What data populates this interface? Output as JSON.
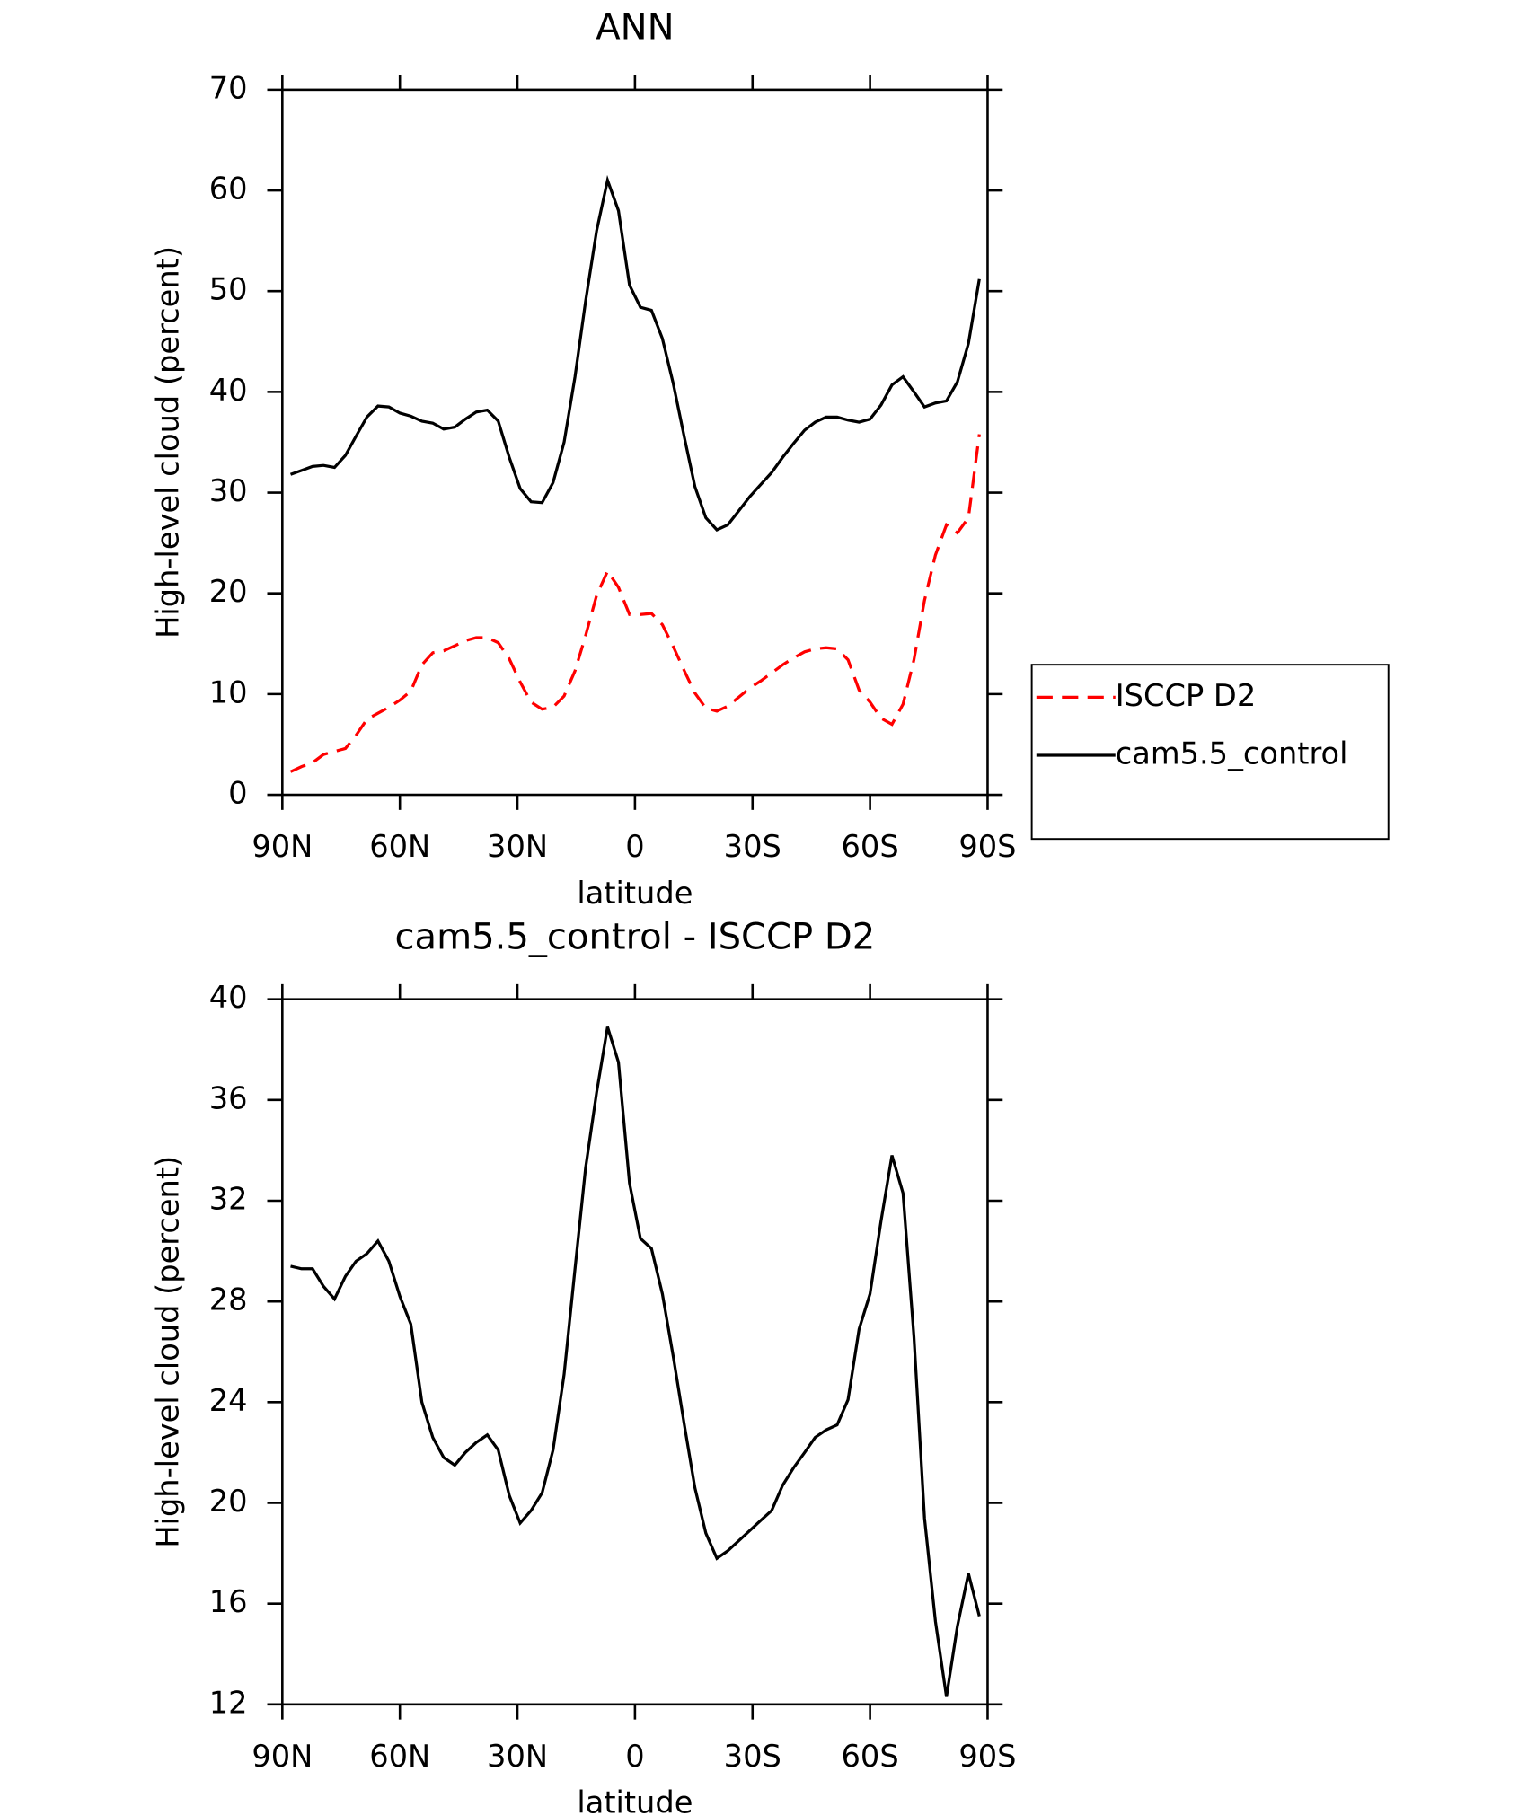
{
  "chart_data": [
    {
      "type": "line",
      "title": "ANN",
      "xlabel": "latitude",
      "ylabel": "High-level cloud (percent)",
      "x": [
        87.9,
        85.1,
        82.3,
        79.5,
        76.7,
        73.9,
        71.2,
        68.4,
        65.6,
        62.8,
        60.0,
        57.2,
        54.4,
        51.6,
        48.8,
        46.0,
        43.3,
        40.5,
        37.7,
        34.9,
        32.1,
        29.3,
        26.5,
        23.7,
        20.9,
        18.1,
        15.3,
        12.6,
        9.8,
        7.0,
        4.2,
        1.4,
        -1.4,
        -4.2,
        -7.0,
        -9.8,
        -12.6,
        -15.3,
        -18.1,
        -20.9,
        -23.7,
        -26.5,
        -29.3,
        -32.1,
        -34.9,
        -37.7,
        -40.5,
        -43.3,
        -46.0,
        -48.8,
        -51.6,
        -54.4,
        -57.2,
        -60.0,
        -62.8,
        -65.6,
        -68.4,
        -71.2,
        -73.9,
        -76.7,
        -79.5,
        -82.3,
        -85.1,
        -87.9
      ],
      "series": [
        {
          "name": "ISCCP D2",
          "color": "#ff0000",
          "line_style": "dashed",
          "values": [
            2.3,
            2.8,
            3.2,
            4.0,
            4.3,
            4.6,
            5.9,
            7.5,
            8.1,
            8.7,
            9.4,
            10.3,
            12.9,
            14.1,
            14.3,
            14.8,
            15.3,
            15.6,
            15.6,
            15.1,
            13.5,
            11.2,
            9.2,
            8.5,
            8.7,
            9.8,
            12.3,
            15.8,
            19.8,
            22.2,
            20.6,
            17.9,
            17.9,
            18.0,
            16.9,
            14.7,
            12.3,
            10.1,
            8.6,
            8.3,
            8.8,
            9.7,
            10.6,
            11.3,
            12.1,
            12.9,
            13.6,
            14.2,
            14.5,
            14.6,
            14.5,
            13.4,
            10.4,
            9.2,
            7.6,
            7.0,
            9.0,
            13.4,
            19.3,
            23.8,
            26.8,
            26.0,
            27.5,
            35.8
          ]
        },
        {
          "name": "cam5.5_control",
          "color": "#000000",
          "line_style": "solid",
          "values": [
            31.8,
            32.2,
            32.6,
            32.7,
            32.5,
            33.7,
            35.6,
            37.5,
            38.6,
            38.5,
            37.9,
            37.6,
            37.1,
            36.9,
            36.3,
            36.5,
            37.3,
            38.0,
            38.2,
            37.1,
            33.5,
            30.4,
            29.1,
            29.0,
            31.0,
            35.0,
            41.5,
            49.0,
            56.0,
            61.0,
            58.0,
            50.6,
            48.4,
            48.1,
            45.3,
            40.8,
            35.5,
            30.6,
            27.5,
            26.3,
            26.8,
            28.2,
            29.6,
            30.8,
            32.0,
            33.5,
            34.9,
            36.2,
            37.0,
            37.5,
            37.5,
            37.2,
            37.0,
            37.3,
            38.7,
            40.7,
            41.5,
            40.0,
            38.5,
            38.9,
            39.1,
            41.0,
            44.8,
            51.2
          ]
        }
      ],
      "xlim": [
        90,
        -90
      ],
      "xticks": [
        {
          "value": 90,
          "label": "90N"
        },
        {
          "value": 60,
          "label": "60N"
        },
        {
          "value": 30,
          "label": "30N"
        },
        0,
        {
          "value": -30,
          "label": "30S"
        },
        {
          "value": -60,
          "label": "60S"
        },
        {
          "value": -90,
          "label": "90S"
        }
      ],
      "ylim": [
        0,
        70
      ],
      "yticks": [
        0,
        10,
        20,
        30,
        40,
        50,
        60,
        70
      ],
      "legend": "right"
    },
    {
      "type": "line",
      "title": "cam5.5_control - ISCCP D2",
      "xlabel": "latitude",
      "ylabel": "High-level cloud (percent)",
      "x": [
        87.9,
        85.1,
        82.3,
        79.5,
        76.7,
        73.9,
        71.2,
        68.4,
        65.6,
        62.8,
        60.0,
        57.2,
        54.4,
        51.6,
        48.8,
        46.0,
        43.3,
        40.5,
        37.7,
        34.9,
        32.1,
        29.3,
        26.5,
        23.7,
        20.9,
        18.1,
        15.3,
        12.6,
        9.8,
        7.0,
        4.2,
        1.4,
        -1.4,
        -4.2,
        -7.0,
        -9.8,
        -12.6,
        -15.3,
        -18.1,
        -20.9,
        -23.7,
        -26.5,
        -29.3,
        -32.1,
        -34.9,
        -37.7,
        -40.5,
        -43.3,
        -46.0,
        -48.8,
        -51.6,
        -54.4,
        -57.2,
        -60.0,
        -62.8,
        -65.6,
        -68.4,
        -71.2,
        -73.9,
        -76.7,
        -79.5,
        -82.3,
        -85.1,
        -87.9
      ],
      "series": [
        {
          "color": "#000000",
          "line_style": "solid",
          "values": [
            29.4,
            29.3,
            29.3,
            28.6,
            28.1,
            29.0,
            29.6,
            29.9,
            30.4,
            29.6,
            28.2,
            27.1,
            24.0,
            22.6,
            21.8,
            21.5,
            22.0,
            22.4,
            22.7,
            22.1,
            20.3,
            19.2,
            19.7,
            20.4,
            22.1,
            25.1,
            29.3,
            33.3,
            36.3,
            38.9,
            37.5,
            32.7,
            30.5,
            30.1,
            28.3,
            25.8,
            23.1,
            20.6,
            18.8,
            17.8,
            18.1,
            18.5,
            18.9,
            19.3,
            19.7,
            20.7,
            21.4,
            22.0,
            22.6,
            22.9,
            23.1,
            24.1,
            26.9,
            28.3,
            31.2,
            33.8,
            32.3,
            26.6,
            19.4,
            15.3,
            12.3,
            15.1,
            17.2,
            15.5
          ]
        }
      ],
      "xlim": [
        90,
        -90
      ],
      "xticks": [
        {
          "value": 90,
          "label": "90N"
        },
        {
          "value": 60,
          "label": "60N"
        },
        {
          "value": 30,
          "label": "30N"
        },
        0,
        {
          "value": -30,
          "label": "30S"
        },
        {
          "value": -60,
          "label": "60S"
        },
        {
          "value": -90,
          "label": "90S"
        }
      ],
      "ylim": [
        12,
        40
      ],
      "yticks": [
        12,
        16,
        20,
        24,
        28,
        32,
        36,
        40
      ]
    }
  ]
}
